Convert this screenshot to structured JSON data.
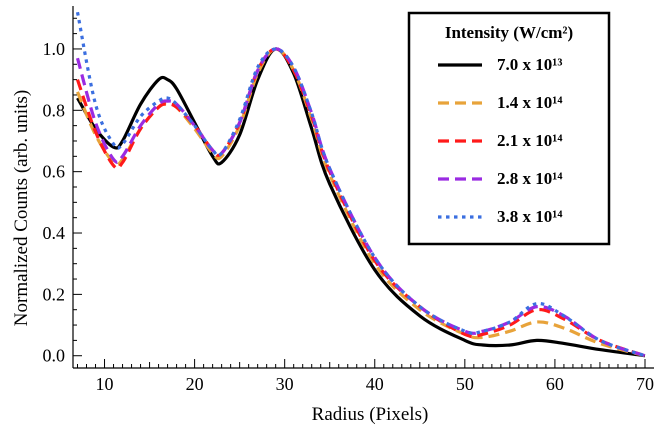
{
  "chart_data": {
    "type": "line",
    "xlabel": "Radius (Pixels)",
    "ylabel": "Normalized Counts (arb. units)",
    "xlim": [
      6.5,
      71
    ],
    "ylim": [
      -0.04,
      1.14
    ],
    "x_ticks": [
      "10",
      "20",
      "30",
      "40",
      "50",
      "60",
      "70"
    ],
    "y_ticks": [
      "0.0",
      "0.2",
      "0.4",
      "0.6",
      "0.8",
      "1.0"
    ],
    "grid": false,
    "legend": {
      "title": "Intensity (W/cm²)",
      "placement": "top-right"
    },
    "x": [
      7,
      9,
      11,
      12,
      14,
      16,
      17,
      18,
      20,
      22,
      23,
      25,
      27,
      29,
      31,
      33,
      35,
      40,
      45,
      50,
      52,
      55,
      58,
      61,
      65,
      70
    ],
    "series": [
      {
        "name": "7.0 x 10¹³",
        "color": "#000000",
        "dash": "solid",
        "values": [
          0.84,
          0.74,
          0.68,
          0.7,
          0.82,
          0.9,
          0.9,
          0.87,
          0.76,
          0.65,
          0.63,
          0.72,
          0.9,
          1.0,
          0.92,
          0.74,
          0.56,
          0.28,
          0.13,
          0.05,
          0.035,
          0.035,
          0.05,
          0.04,
          0.02,
          0.0
        ]
      },
      {
        "name": "1.4 x 10¹⁴",
        "color": "#e8a33a",
        "dash": "dashed",
        "values": [
          0.86,
          0.72,
          0.63,
          0.64,
          0.74,
          0.81,
          0.82,
          0.81,
          0.74,
          0.66,
          0.65,
          0.75,
          0.92,
          1.0,
          0.93,
          0.77,
          0.59,
          0.3,
          0.15,
          0.07,
          0.06,
          0.08,
          0.11,
          0.09,
          0.04,
          0.0
        ]
      },
      {
        "name": "2.1 x 10¹⁴",
        "color": "#ff1a1a",
        "dash": "dashed",
        "values": [
          0.9,
          0.73,
          0.62,
          0.63,
          0.74,
          0.81,
          0.82,
          0.81,
          0.75,
          0.67,
          0.66,
          0.76,
          0.93,
          1.0,
          0.93,
          0.78,
          0.6,
          0.31,
          0.16,
          0.07,
          0.07,
          0.1,
          0.15,
          0.12,
          0.05,
          0.0
        ]
      },
      {
        "name": "2.8 x 10¹⁴",
        "color": "#9a2be2",
        "dash": "dashed",
        "values": [
          0.97,
          0.76,
          0.64,
          0.65,
          0.75,
          0.82,
          0.83,
          0.82,
          0.75,
          0.67,
          0.66,
          0.76,
          0.93,
          1.0,
          0.94,
          0.79,
          0.61,
          0.32,
          0.16,
          0.08,
          0.08,
          0.11,
          0.16,
          0.13,
          0.05,
          0.0
        ]
      },
      {
        "name": "3.8 x 10¹⁴",
        "color": "#3b6fe0",
        "dash": "dotted",
        "values": [
          1.12,
          0.82,
          0.69,
          0.69,
          0.78,
          0.83,
          0.84,
          0.82,
          0.75,
          0.67,
          0.66,
          0.77,
          0.94,
          1.0,
          0.94,
          0.79,
          0.61,
          0.32,
          0.16,
          0.08,
          0.08,
          0.11,
          0.17,
          0.13,
          0.05,
          0.0
        ]
      }
    ]
  }
}
